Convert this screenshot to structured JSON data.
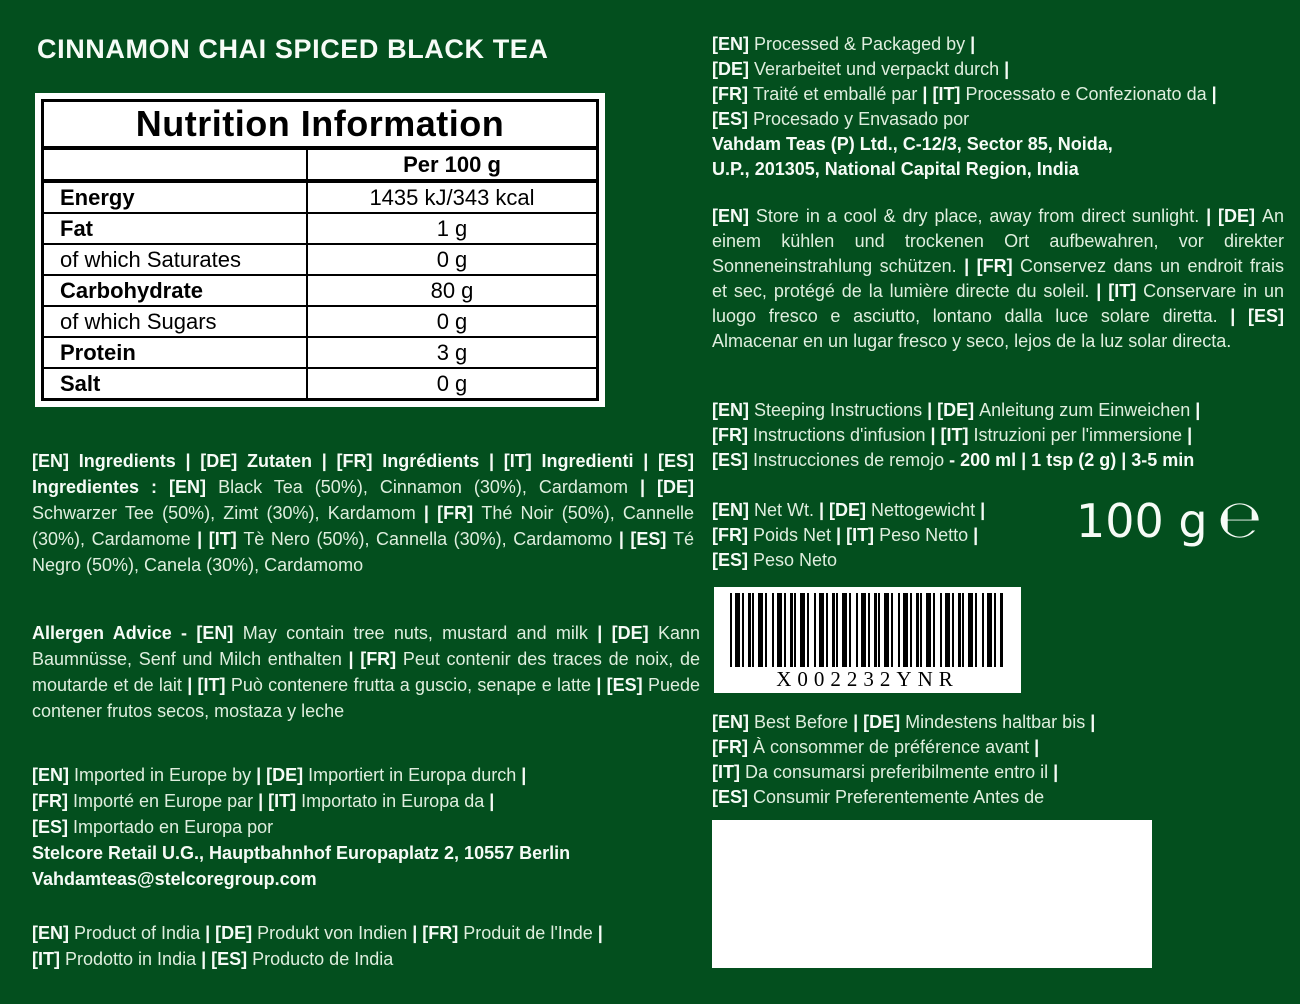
{
  "colors": {
    "background": "#034f1e",
    "text_regular": "#dfeede",
    "text_bold": "#f6fbf6",
    "panel_bg": "#ffffff",
    "panel_text": "#000000"
  },
  "title": "CINNAMON CHAI SPICED BLACK TEA",
  "nutrition_table": {
    "title": "Nutrition Information",
    "column_header": "Per 100 g",
    "rows": [
      {
        "label": "Energy",
        "value": "1435 kJ/343 kcal",
        "bold": true
      },
      {
        "label": "Fat",
        "value": "1 g",
        "bold": true
      },
      {
        "label": "of which Saturates",
        "value": "0 g",
        "bold": false
      },
      {
        "label": "Carbohydrate",
        "value": "80 g",
        "bold": true
      },
      {
        "label": "of which Sugars",
        "value": "0 g",
        "bold": false
      },
      {
        "label": "Protein",
        "value": "3 g",
        "bold": true
      },
      {
        "label": "Salt",
        "value": "0 g",
        "bold": true
      }
    ]
  },
  "ingredients": {
    "segments": [
      {
        "b": true,
        "t": "[EN] Ingredients | [DE] Zutaten | [FR] Ingrédients | [IT] Ingredienti | [ES] Ingredientes : [EN] "
      },
      {
        "b": false,
        "t": "Black Tea (50%), Cinnamon (30%), Cardamom "
      },
      {
        "b": true,
        "t": "| [DE] "
      },
      {
        "b": false,
        "t": "Schwarzer Tee (50%), Zimt (30%), Kardamom "
      },
      {
        "b": true,
        "t": "| [FR] "
      },
      {
        "b": false,
        "t": "Thé Noir (50%), Cannelle (30%), Cardamome "
      },
      {
        "b": true,
        "t": "| [IT] "
      },
      {
        "b": false,
        "t": "Tè Nero (50%), Cannella (30%), Cardamomo "
      },
      {
        "b": true,
        "t": "| [ES] "
      },
      {
        "b": false,
        "t": "Té Negro (50%), Canela (30%), Cardamomo"
      }
    ]
  },
  "allergen": {
    "segments": [
      {
        "b": true,
        "t": "Allergen Advice - [EN] "
      },
      {
        "b": false,
        "t": "May contain tree nuts, mustard and milk "
      },
      {
        "b": true,
        "t": "| [DE] "
      },
      {
        "b": false,
        "t": "Kann Baumnüsse, Senf und Milch enthalten "
      },
      {
        "b": true,
        "t": "| [FR] "
      },
      {
        "b": false,
        "t": "Peut contenir des traces de noix, de moutarde et de lait "
      },
      {
        "b": true,
        "t": "| [IT] "
      },
      {
        "b": false,
        "t": "Può contenere frutta a guscio, senape e latte "
      },
      {
        "b": true,
        "t": "| [ES] "
      },
      {
        "b": false,
        "t": "Puede contener frutos secos, mostaza y leche"
      }
    ]
  },
  "imported": {
    "segments": [
      {
        "b": true,
        "t": "[EN] "
      },
      {
        "b": false,
        "t": "Imported in Europe by "
      },
      {
        "b": true,
        "t": "| [DE] "
      },
      {
        "b": false,
        "t": "Importiert in Europa durch "
      },
      {
        "b": true,
        "t": "|\n[FR] "
      },
      {
        "b": false,
        "t": "Importé en Europe par "
      },
      {
        "b": true,
        "t": "| [IT] "
      },
      {
        "b": false,
        "t": "Importato in Europa da "
      },
      {
        "b": true,
        "t": "|\n[ES] "
      },
      {
        "b": false,
        "t": "Importado en Europa por\n"
      },
      {
        "b": true,
        "t": "Stelcore Retail U.G., Hauptbahnhof Europaplatz 2, 10557 Berlin\nVahdamteas@stelcoregroup.com"
      }
    ]
  },
  "product": {
    "segments": [
      {
        "b": true,
        "t": "[EN] "
      },
      {
        "b": false,
        "t": "Product of India "
      },
      {
        "b": true,
        "t": "| [DE] "
      },
      {
        "b": false,
        "t": "Produkt von Indien "
      },
      {
        "b": true,
        "t": "| [FR] "
      },
      {
        "b": false,
        "t": "Produit de l'Inde "
      },
      {
        "b": true,
        "t": "|\n[IT] "
      },
      {
        "b": false,
        "t": "Prodotto in India "
      },
      {
        "b": true,
        "t": "| [ES] "
      },
      {
        "b": false,
        "t": "Producto de India"
      }
    ]
  },
  "processed": {
    "segments": [
      {
        "b": true,
        "t": "[EN] "
      },
      {
        "b": false,
        "t": "Processed & Packaged by "
      },
      {
        "b": true,
        "t": "|\n[DE] "
      },
      {
        "b": false,
        "t": "Verarbeitet und verpackt durch "
      },
      {
        "b": true,
        "t": "|\n[FR] "
      },
      {
        "b": false,
        "t": "Traité et emballé par "
      },
      {
        "b": true,
        "t": "| [IT] "
      },
      {
        "b": false,
        "t": "Processato e Confezionato da "
      },
      {
        "b": true,
        "t": "|\n[ES] "
      },
      {
        "b": false,
        "t": "Procesado y Envasado por\n"
      },
      {
        "b": true,
        "t": "Vahdam Teas (P) Ltd., C-12/3, Sector 85, Noida,\nU.P., 201305, National Capital Region, India"
      }
    ]
  },
  "storage": {
    "segments": [
      {
        "b": true,
        "t": "[EN] "
      },
      {
        "b": false,
        "t": "Store in a cool & dry place, away from direct sunlight. "
      },
      {
        "b": true,
        "t": "| [DE] "
      },
      {
        "b": false,
        "t": "An einem kühlen und trockenen Ort aufbewahren, vor direkter Sonneneinstrahlung schützen. "
      },
      {
        "b": true,
        "t": "| [FR] "
      },
      {
        "b": false,
        "t": "Conservez dans un endroit frais et sec, protégé de la lumière directe du soleil. "
      },
      {
        "b": true,
        "t": "| [IT] "
      },
      {
        "b": false,
        "t": "Conservare in un luogo fresco e asciutto, lontano dalla luce solare diretta. "
      },
      {
        "b": true,
        "t": "| [ES] "
      },
      {
        "b": false,
        "t": "Almacenar en un lugar fresco y seco, lejos de la luz solar directa."
      }
    ]
  },
  "steeping": {
    "segments": [
      {
        "b": true,
        "t": "[EN] "
      },
      {
        "b": false,
        "t": "Steeping Instructions "
      },
      {
        "b": true,
        "t": "| [DE] "
      },
      {
        "b": false,
        "t": "Anleitung zum Einweichen "
      },
      {
        "b": true,
        "t": "|\n[FR] "
      },
      {
        "b": false,
        "t": "Instructions d'infusion "
      },
      {
        "b": true,
        "t": "| [IT] "
      },
      {
        "b": false,
        "t": "Istruzioni per l'immersione "
      },
      {
        "b": true,
        "t": "|\n[ES] "
      },
      {
        "b": false,
        "t": "Instrucciones de remojo "
      },
      {
        "b": true,
        "t": "- 200 ml | 1 tsp (2 g) | 3-5 min"
      }
    ]
  },
  "net_weight": {
    "segments": [
      {
        "b": true,
        "t": "[EN] "
      },
      {
        "b": false,
        "t": "Net Wt. "
      },
      {
        "b": true,
        "t": "| [DE] "
      },
      {
        "b": false,
        "t": "Nettogewicht "
      },
      {
        "b": true,
        "t": "|\n[FR] "
      },
      {
        "b": false,
        "t": "Poids Net "
      },
      {
        "b": true,
        "t": "| [IT] "
      },
      {
        "b": false,
        "t": "Peso Netto "
      },
      {
        "b": true,
        "t": "|\n[ES] "
      },
      {
        "b": false,
        "t": "Peso Neto"
      }
    ],
    "value": "100 g",
    "estimated_sign": "℮"
  },
  "barcode": {
    "code": "X002232YNR"
  },
  "best_before": {
    "segments": [
      {
        "b": true,
        "t": "[EN] "
      },
      {
        "b": false,
        "t": "Best Before "
      },
      {
        "b": true,
        "t": "| [DE] "
      },
      {
        "b": false,
        "t": "Mindestens haltbar bis "
      },
      {
        "b": true,
        "t": "|\n[FR] "
      },
      {
        "b": false,
        "t": "À consommer de préférence avant "
      },
      {
        "b": true,
        "t": "|\n[IT] "
      },
      {
        "b": false,
        "t": "Da consumarsi preferibilmente entro il "
      },
      {
        "b": true,
        "t": "|\n[ES] "
      },
      {
        "b": false,
        "t": "Consumir Preferentemente Antes de"
      }
    ]
  }
}
